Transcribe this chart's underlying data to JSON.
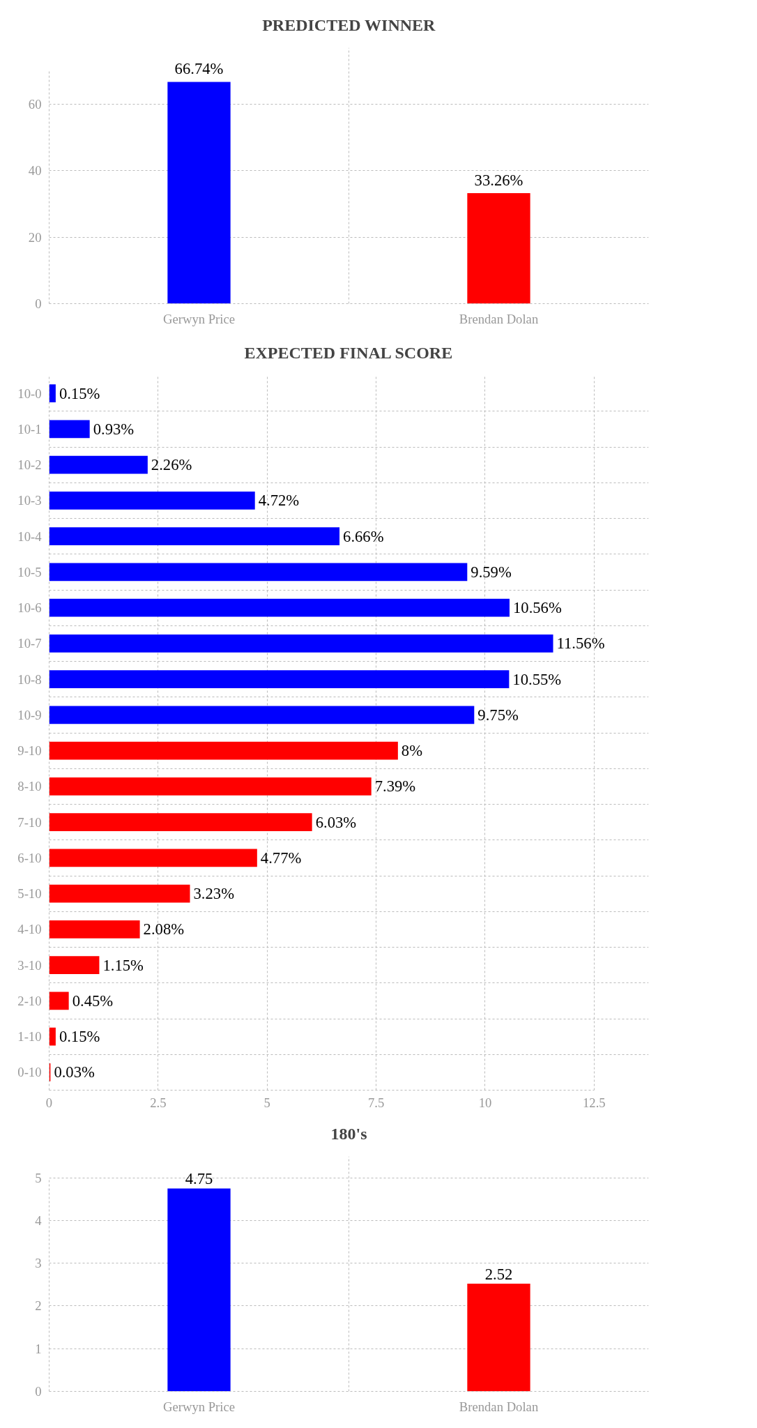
{
  "chart_data": [
    {
      "type": "bar",
      "title": "PREDICTED WINNER",
      "categories": [
        "Gerwyn Price",
        "Brendan Dolan"
      ],
      "values": [
        66.74,
        33.26
      ],
      "colors": [
        "#0000ff",
        "#ff0000"
      ],
      "value_labels": [
        "66.74%",
        "33.26%"
      ],
      "ylim": [
        0,
        70
      ],
      "yticks": [
        0,
        20,
        40,
        60
      ],
      "grid": true
    },
    {
      "type": "bar",
      "title": "EXPECTED FINAL SCORE",
      "orientation": "horizontal",
      "categories": [
        "10-0",
        "10-1",
        "10-2",
        "10-3",
        "10-4",
        "10-5",
        "10-6",
        "10-7",
        "10-8",
        "10-9",
        "9-10",
        "8-10",
        "7-10",
        "6-10",
        "5-10",
        "4-10",
        "3-10",
        "2-10",
        "1-10",
        "0-10"
      ],
      "values": [
        0.15,
        0.93,
        2.26,
        4.72,
        6.66,
        9.59,
        10.56,
        11.56,
        10.55,
        9.75,
        8,
        7.39,
        6.03,
        4.77,
        3.23,
        2.08,
        1.15,
        0.45,
        0.15,
        0.03
      ],
      "colors": [
        "#0000ff",
        "#0000ff",
        "#0000ff",
        "#0000ff",
        "#0000ff",
        "#0000ff",
        "#0000ff",
        "#0000ff",
        "#0000ff",
        "#0000ff",
        "#ff0000",
        "#ff0000",
        "#ff0000",
        "#ff0000",
        "#ff0000",
        "#ff0000",
        "#ff0000",
        "#ff0000",
        "#ff0000",
        "#ff0000"
      ],
      "value_labels": [
        "0.15%",
        "0.93%",
        "2.26%",
        "4.72%",
        "6.66%",
        "9.59%",
        "10.56%",
        "11.56%",
        "10.55%",
        "9.75%",
        "8%",
        "7.39%",
        "6.03%",
        "4.77%",
        "3.23%",
        "2.08%",
        "1.15%",
        "0.45%",
        "0.15%",
        "0.03%"
      ],
      "xlim": [
        0,
        12.5
      ],
      "xticks": [
        0,
        2.5,
        5,
        7.5,
        10,
        12.5
      ],
      "grid": true
    },
    {
      "type": "bar",
      "title": "180's",
      "categories": [
        "Gerwyn Price",
        "Brendan Dolan"
      ],
      "values": [
        4.75,
        2.52
      ],
      "colors": [
        "#0000ff",
        "#ff0000"
      ],
      "data_labels": true,
      "ylim": [
        0,
        5
      ],
      "yticks": [
        0,
        1,
        2,
        3,
        4,
        5
      ],
      "grid": true
    }
  ]
}
